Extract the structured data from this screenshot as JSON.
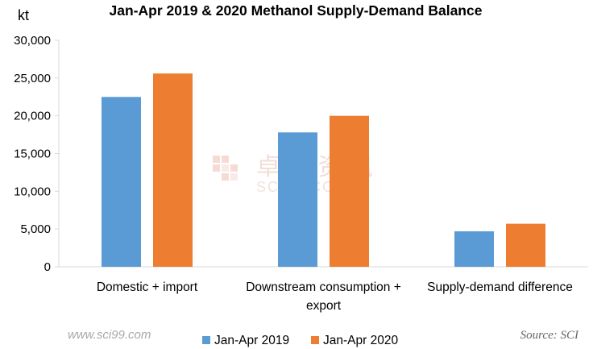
{
  "chart_data": {
    "type": "bar",
    "title": "Jan-Apr 2019 & 2020 Methanol Supply-Demand Balance",
    "ylabel": "kt",
    "ylim": [
      0,
      30000
    ],
    "yticks": [
      0,
      5000,
      10000,
      15000,
      20000,
      25000,
      30000
    ],
    "ytick_labels": [
      "0",
      "5,000",
      "10,000",
      "15,000",
      "20,000",
      "25,000",
      "30,000"
    ],
    "grid": false,
    "legend_position": "bottom",
    "categories": [
      [
        "Domestic + import"
      ],
      [
        "Downstream consumption +",
        "export"
      ],
      [
        "Supply-demand difference"
      ]
    ],
    "series": [
      {
        "name": "Jan-Apr 2019",
        "color": "#5b9bd5",
        "values": [
          22500,
          17800,
          4700
        ]
      },
      {
        "name": "Jan-Apr 2020",
        "color": "#ed7d31",
        "values": [
          25600,
          20000,
          5700
        ]
      }
    ]
  },
  "watermark": {
    "logo_text": "卓 创 资 讯",
    "logo_sub": "SCI99.COM",
    "site": "www.sci99.com"
  },
  "source": "Source: SCI"
}
